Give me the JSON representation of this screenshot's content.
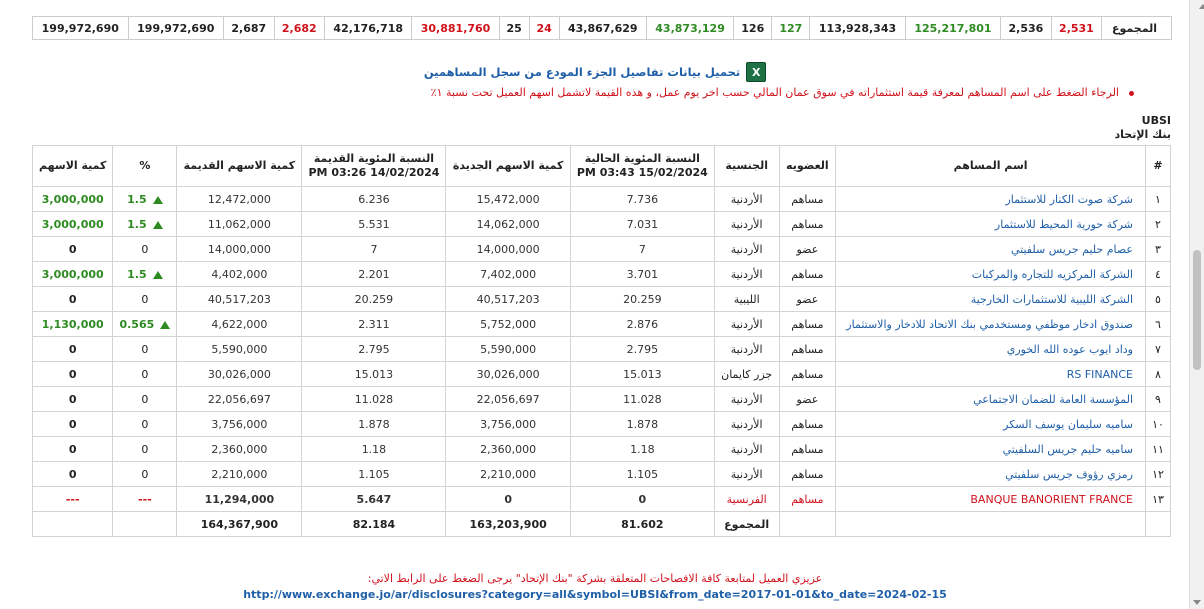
{
  "summary": {
    "label": "المجموع",
    "cells": [
      {
        "v": "2,531",
        "c": "red"
      },
      {
        "v": "2,536",
        "c": ""
      },
      {
        "v": "125,217,801",
        "c": "green"
      },
      {
        "v": "113,928,343",
        "c": ""
      },
      {
        "v": "127",
        "c": "green"
      },
      {
        "v": "126",
        "c": ""
      },
      {
        "v": "43,873,129",
        "c": "green"
      },
      {
        "v": "43,867,629",
        "c": ""
      },
      {
        "v": "24",
        "c": "red"
      },
      {
        "v": "25",
        "c": ""
      },
      {
        "v": "30,881,760",
        "c": "red"
      },
      {
        "v": "42,176,718",
        "c": ""
      },
      {
        "v": "2,682",
        "c": "red"
      },
      {
        "v": "2,687",
        "c": ""
      },
      {
        "v": "199,972,690",
        "c": ""
      },
      {
        "v": "199,972,690",
        "c": ""
      }
    ]
  },
  "excel_link": {
    "icon": "excel-icon",
    "icon_letter": "X",
    "text": "تحميل بيانات تفاصيل الجزء المودع من سجل المساهمين"
  },
  "notice": "الرجاء الضغط على اسم المساهم لمعرفة قيمة استثماراته في سوق عمان المالي حسب اخر يوم عمل، و هذه القيمة لاتشمل اسهم العميل تحت نسبة ١٪",
  "symbol": "UBSI",
  "bank_name": "بنك الإتحاد",
  "table": {
    "headers": {
      "num": "#",
      "name": "اسم المساهم",
      "membership": "العضويه",
      "nationality": "الجنسية",
      "current_pct": "النسبة المئوية الحالية",
      "current_date": "15/02/2024 03:43 PM",
      "new_shares": "كمية الاسهم الجديدة",
      "old_pct": "النسبة المئوية القديمة",
      "old_date": "14/02/2024 03:26 PM",
      "old_shares": "كمية الاسهم القديمة",
      "change_pct": "%",
      "change_qty": "كمية الاسهم"
    },
    "rows": [
      {
        "n": "١",
        "name": "شركة صوت الكنار للاستثمار",
        "mem": "مساهم",
        "nat": "الأردنية",
        "cp": "7.736",
        "ns": "15,472,000",
        "op": "6.236",
        "os": "12,472,000",
        "chg": "1.5",
        "qty": "3,000,000",
        "up": true,
        "special": false
      },
      {
        "n": "٢",
        "name": "شركة حورية المحيط للاستثمار",
        "mem": "مساهم",
        "nat": "الأردنية",
        "cp": "7.031",
        "ns": "14,062,000",
        "op": "5.531",
        "os": "11,062,000",
        "chg": "1.5",
        "qty": "3,000,000",
        "up": true,
        "special": false
      },
      {
        "n": "٣",
        "name": "عصام حليم جريس سلفيتي",
        "mem": "عضو",
        "nat": "الأردنية",
        "cp": "7",
        "ns": "14,000,000",
        "op": "7",
        "os": "14,000,000",
        "chg": "0",
        "qty": "0",
        "up": false,
        "special": false
      },
      {
        "n": "٤",
        "name": "الشركة المركزيه للتجاره والمركبات",
        "mem": "مساهم",
        "nat": "الأردنية",
        "cp": "3.701",
        "ns": "7,402,000",
        "op": "2.201",
        "os": "4,402,000",
        "chg": "1.5",
        "qty": "3,000,000",
        "up": true,
        "special": false
      },
      {
        "n": "٥",
        "name": "الشركة الليبية للاستثمارات الخارجية",
        "mem": "عضو",
        "nat": "الليبية",
        "cp": "20.259",
        "ns": "40,517,203",
        "op": "20.259",
        "os": "40,517,203",
        "chg": "0",
        "qty": "0",
        "up": false,
        "special": false
      },
      {
        "n": "٦",
        "name": "صندوق ادخار موظفي ومستخدمي بنك الاتحاد للادخار والاستثمار",
        "mem": "مساهم",
        "nat": "الأردنية",
        "cp": "2.876",
        "ns": "5,752,000",
        "op": "2.311",
        "os": "4,622,000",
        "chg": "0.565",
        "qty": "1,130,000",
        "up": true,
        "special": false
      },
      {
        "n": "٧",
        "name": "وداد ايوب عوده الله الخوري",
        "mem": "مساهم",
        "nat": "الأردنية",
        "cp": "2.795",
        "ns": "5,590,000",
        "op": "2.795",
        "os": "5,590,000",
        "chg": "0",
        "qty": "0",
        "up": false,
        "special": false
      },
      {
        "n": "٨",
        "name": "RS FINANCE",
        "mem": "مساهم",
        "nat": "جزر كايمان",
        "cp": "15.013",
        "ns": "30,026,000",
        "op": "15.013",
        "os": "30,026,000",
        "chg": "0",
        "qty": "0",
        "up": false,
        "special": false
      },
      {
        "n": "٩",
        "name": "المؤسسة العامة للضمان الاجتماعي",
        "mem": "عضو",
        "nat": "الأردنية",
        "cp": "11.028",
        "ns": "22,056,697",
        "op": "11.028",
        "os": "22,056,697",
        "chg": "0",
        "qty": "0",
        "up": false,
        "special": false
      },
      {
        "n": "١٠",
        "name": "ساميه سليمان يوسف السكر",
        "mem": "مساهم",
        "nat": "الأردنية",
        "cp": "1.878",
        "ns": "3,756,000",
        "op": "1.878",
        "os": "3,756,000",
        "chg": "0",
        "qty": "0",
        "up": false,
        "special": false
      },
      {
        "n": "١١",
        "name": "ساميه حليم جريس السلفيتي",
        "mem": "مساهم",
        "nat": "الأردنية",
        "cp": "1.18",
        "ns": "2,360,000",
        "op": "1.18",
        "os": "2,360,000",
        "chg": "0",
        "qty": "0",
        "up": false,
        "special": false
      },
      {
        "n": "١٢",
        "name": "رمزي رؤوف جريس سلفيتي",
        "mem": "مساهم",
        "nat": "الأردنية",
        "cp": "1.105",
        "ns": "2,210,000",
        "op": "1.105",
        "os": "2,210,000",
        "chg": "0",
        "qty": "0",
        "up": false,
        "special": false
      },
      {
        "n": "١٣",
        "name": "BANQUE BANORIENT FRANCE",
        "mem": "مساهم",
        "nat": "الفرنسية",
        "cp": "0",
        "ns": "0",
        "op": "5.647",
        "os": "11,294,000",
        "chg": "---",
        "qty": "---",
        "up": false,
        "special": true
      }
    ],
    "total": {
      "label": "المجموع",
      "cp": "81.602",
      "ns": "163,203,900",
      "op": "82.184",
      "os": "164,367,900"
    }
  },
  "footer": {
    "note": "عزيزي العميل لمتابعة كافة الافصاحات المتعلقة بشركة \"بنك الإتحاد\" يرجى الضغط على الرابط الاتي:",
    "url": "http://www.exchange.jo/ar/disclosures?category=all&symbol=UBSI&from_date=2017-01-01&to_date=2024-02-15"
  }
}
